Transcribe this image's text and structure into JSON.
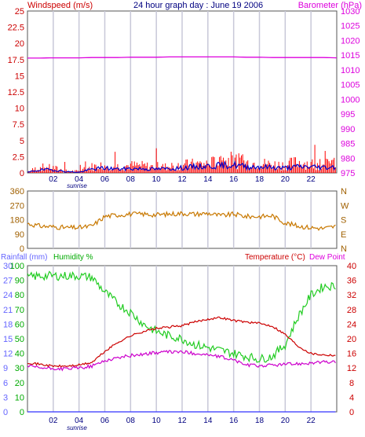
{
  "colors": {
    "wind_axis": "#cc0000",
    "baro_axis": "#dd00dd",
    "title": "#000080",
    "grid_box": "#ffffff",
    "wind_gust": "#ff0000",
    "wind_avg": "#0000cc",
    "barometer": "#dd00dd",
    "direction": "#c87800",
    "dir_axis": "#a06000",
    "rain_axis": "#6666ff",
    "humidity_axis": "#00aa00",
    "temp_axis": "#cc0000",
    "dewpoint_axis": "#dd00dd",
    "humidity_line": "#22cc22",
    "temperature_line": "#cc0000",
    "dewpoint_line": "#cc00cc",
    "rain_line": "#3333ff"
  },
  "top": {
    "title": "24 hour graph day : June 19 2006",
    "left_label": "Windspeed (m/s)",
    "right_label": "Barometer (hPa)",
    "x_ticks": [
      "02",
      "04",
      "06",
      "08",
      "10",
      "12",
      "14",
      "16",
      "18",
      "20",
      "22"
    ],
    "sunrise_label": "sunrise",
    "wind_ticks": [
      "0",
      "2.5",
      "5",
      "7.5",
      "10",
      "12.5",
      "15",
      "17.5",
      "20",
      "22.5",
      "25"
    ],
    "baro_ticks": [
      "975",
      "980",
      "985",
      "990",
      "995",
      "1000",
      "1005",
      "1010",
      "1015",
      "1020",
      "1025",
      "1030"
    ]
  },
  "middle": {
    "left_ticks": [
      "0",
      "90",
      "180",
      "270",
      "360"
    ],
    "right_ticks": [
      "N",
      "W",
      "S",
      "E",
      "N"
    ]
  },
  "bottom": {
    "rain_label": "Rainfall (mm)",
    "humidity_label": "Humidity %",
    "temp_label": "Temperature (°C)",
    "dew_label": "Dew Point",
    "rain_ticks": [
      "0",
      "3",
      "6",
      "9",
      "12",
      "15",
      "18",
      "21",
      "24",
      "27",
      "30"
    ],
    "humidity_ticks": [
      "0",
      "10",
      "20",
      "30",
      "40",
      "50",
      "60",
      "70",
      "80",
      "90",
      "100"
    ],
    "temp_ticks": [
      "0",
      "4",
      "8",
      "12",
      "16",
      "20",
      "24",
      "28",
      "32",
      "36",
      "40"
    ],
    "x_ticks": [
      "02",
      "04",
      "06",
      "08",
      "10",
      "12",
      "14",
      "16",
      "18",
      "20",
      "22"
    ],
    "sunrise_label": "sunrise"
  },
  "chart_data": [
    {
      "type": "line",
      "title": "24 hour graph day : June 19 2006",
      "xlabel": "",
      "ylabel": "Windspeed (m/s)",
      "y2label": "Barometer (hPa)",
      "ylim": [
        0,
        25
      ],
      "y2lim": [
        975,
        1030
      ],
      "x": [
        0,
        1,
        2,
        3,
        4,
        5,
        6,
        7,
        8,
        9,
        10,
        11,
        12,
        13,
        14,
        15,
        16,
        17,
        18,
        19,
        20,
        21,
        22,
        23,
        24
      ],
      "series": [
        {
          "name": "Windspeed gust",
          "axis": "left",
          "values": [
            0.3,
            1.4,
            1.2,
            0.5,
            0.4,
            1.5,
            1.8,
            1.6,
            1.8,
            1.7,
            1.4,
            1.5,
            1.9,
            2.1,
            2.2,
            2.8,
            3.0,
            2.4,
            2.3,
            2.0,
            1.9,
            2.6,
            2.2,
            2.0,
            2.4
          ]
        },
        {
          "name": "Windspeed average",
          "axis": "left",
          "values": [
            0.1,
            0.5,
            0.5,
            0.2,
            0.1,
            0.6,
            0.8,
            0.6,
            0.7,
            0.7,
            0.6,
            0.7,
            0.8,
            1.0,
            1.1,
            1.2,
            1.3,
            1.0,
            1.0,
            0.9,
            0.8,
            1.0,
            1.0,
            0.9,
            1.0
          ]
        },
        {
          "name": "Barometer",
          "axis": "right",
          "values": [
            1014.0,
            1014.0,
            1014.1,
            1014.1,
            1014.1,
            1014.2,
            1014.2,
            1014.2,
            1014.3,
            1014.3,
            1014.3,
            1014.4,
            1014.4,
            1014.4,
            1014.4,
            1014.4,
            1014.4,
            1014.3,
            1014.3,
            1014.2,
            1014.2,
            1014.2,
            1014.2,
            1014.2,
            1014.1
          ]
        }
      ]
    },
    {
      "type": "line",
      "title": "",
      "xlabel": "",
      "ylabel": "",
      "ylim": [
        0,
        360
      ],
      "x": [
        0,
        1,
        2,
        3,
        4,
        5,
        6,
        7,
        8,
        9,
        10,
        11,
        12,
        13,
        14,
        15,
        16,
        17,
        18,
        19,
        20,
        21,
        22,
        23,
        24
      ],
      "series": [
        {
          "name": "Wind direction",
          "values": [
            155,
            140,
            135,
            130,
            130,
            140,
            200,
            210,
            215,
            215,
            210,
            215,
            220,
            215,
            220,
            205,
            215,
            200,
            200,
            205,
            160,
            140,
            130,
            125,
            140
          ]
        }
      ]
    },
    {
      "type": "line",
      "title": "",
      "xlabel": "",
      "ylabel": "",
      "ylims": {
        "rainfall": [
          0,
          30
        ],
        "humidity": [
          0,
          100
        ],
        "temperature": [
          0,
          40
        ]
      },
      "x": [
        0,
        1,
        2,
        3,
        4,
        5,
        6,
        7,
        8,
        9,
        10,
        11,
        12,
        13,
        14,
        15,
        16,
        17,
        18,
        19,
        20,
        21,
        22,
        23,
        24
      ],
      "series": [
        {
          "name": "Humidity %",
          "axis": "humidity",
          "values": [
            92,
            93,
            93,
            93,
            93,
            92,
            82,
            74,
            68,
            60,
            55,
            52,
            50,
            46,
            44,
            42,
            40,
            38,
            36,
            38,
            46,
            65,
            80,
            86,
            86
          ]
        },
        {
          "name": "Temperature (°C)",
          "axis": "temperature",
          "values": [
            13.5,
            13.0,
            12.5,
            12.5,
            12.8,
            13.5,
            16.5,
            19.0,
            20.8,
            22.0,
            22.8,
            23.2,
            23.6,
            24.6,
            25.4,
            25.8,
            25.0,
            24.6,
            24.2,
            23.5,
            21.2,
            18.0,
            16.0,
            15.6,
            15.5
          ]
        },
        {
          "name": "Dew Point",
          "axis": "temperature",
          "values": [
            12.5,
            12.0,
            11.8,
            11.8,
            12.0,
            12.5,
            14.0,
            14.8,
            15.4,
            15.8,
            16.2,
            16.4,
            16.4,
            16.0,
            15.6,
            15.0,
            14.2,
            12.8,
            12.6,
            12.8,
            13.0,
            13.2,
            13.4,
            13.6,
            13.6
          ]
        },
        {
          "name": "Rainfall (mm)",
          "axis": "rainfall",
          "values": [
            0,
            0,
            0,
            0,
            0,
            0,
            0,
            0,
            0,
            0,
            0,
            0,
            0,
            0,
            0,
            0,
            0,
            0,
            0,
            0,
            0,
            0,
            0,
            0,
            0
          ]
        }
      ]
    }
  ]
}
